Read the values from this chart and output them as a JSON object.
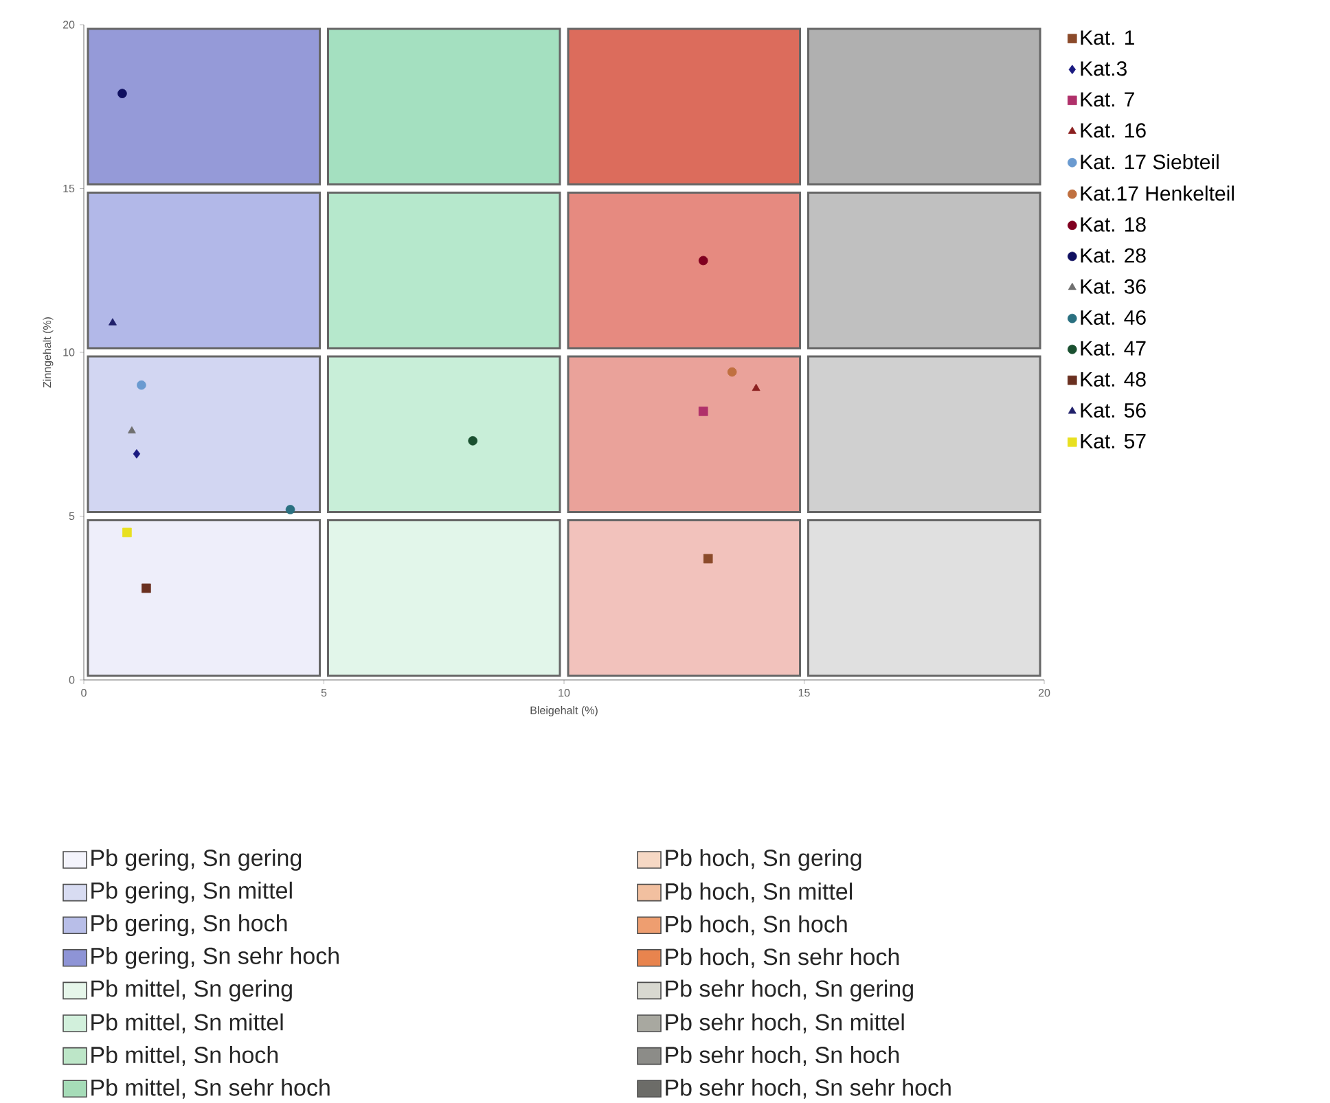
{
  "chart_data": [
    {
      "type": "scatter",
      "xlabel": "Bleigehalt (%)",
      "ylabel": "Zinngehalt (%)",
      "xlim": [
        0,
        20
      ],
      "ylim": [
        0,
        20
      ],
      "xticks": [
        0,
        5,
        10,
        15,
        20
      ],
      "yticks": [
        0,
        5,
        10,
        15,
        20
      ],
      "legend": "right",
      "series": [
        {
          "name": "Kat. 1",
          "color": "#8b4a2a",
          "marker": "square",
          "x": [
            13.0
          ],
          "values": [
            3.7
          ]
        },
        {
          "name": "Kat.3",
          "color": "#1a1a80",
          "marker": "diamond",
          "x": [
            1.1
          ],
          "values": [
            6.9
          ]
        },
        {
          "name": "Kat. 7",
          "color": "#b0306a",
          "marker": "square",
          "x": [
            12.9
          ],
          "values": [
            8.2
          ]
        },
        {
          "name": "Kat. 16",
          "color": "#8b2020",
          "marker": "triangle",
          "x": [
            14.0
          ],
          "values": [
            8.9
          ]
        },
        {
          "name": "Kat. 17 Siebteil",
          "color": "#6a9ad0",
          "marker": "circle",
          "x": [
            1.2
          ],
          "values": [
            9.0
          ]
        },
        {
          "name": "Kat.17 Henkelteil",
          "color": "#c07040",
          "marker": "circle",
          "x": [
            13.5
          ],
          "values": [
            9.4
          ]
        },
        {
          "name": "Kat. 18",
          "color": "#800020",
          "marker": "circle",
          "x": [
            12.9
          ],
          "values": [
            12.8
          ]
        },
        {
          "name": "Kat. 28",
          "color": "#101060",
          "marker": "circle",
          "x": [
            0.8
          ],
          "values": [
            17.9
          ]
        },
        {
          "name": "Kat. 36",
          "color": "#707070",
          "marker": "triangle",
          "x": [
            1.0
          ],
          "values": [
            7.6
          ]
        },
        {
          "name": "Kat. 46",
          "color": "#2a7080",
          "marker": "circle",
          "x": [
            4.3
          ],
          "values": [
            5.2
          ]
        },
        {
          "name": "Kat. 47",
          "color": "#1a5030",
          "marker": "circle",
          "x": [
            8.1
          ],
          "values": [
            7.3
          ]
        },
        {
          "name": "Kat. 48",
          "color": "#6a3020",
          "marker": "square",
          "x": [
            1.3
          ],
          "values": [
            2.8
          ]
        },
        {
          "name": "Kat. 56",
          "color": "#20206a",
          "marker": "triangle",
          "x": [
            0.6
          ],
          "values": [
            10.9
          ]
        },
        {
          "name": "Kat. 57",
          "color": "#e8e020",
          "marker": "square",
          "x": [
            0.9
          ],
          "values": [
            4.5
          ]
        }
      ]
    },
    {
      "type": "other",
      "annotations": [
        "Pb gering, Sn gering",
        "Pb gering, Sn mittel",
        "Pb gering, Sn hoch",
        "Pb gering, Sn sehr hoch",
        "Pb mittel, Sn gering",
        "Pb mittel, Sn mittel",
        "Pb mittel, Sn hoch",
        "Pb mittel, Sn sehr hoch",
        "Pb hoch, Sn gering",
        "Pb hoch, Sn mittel",
        "Pb hoch, Sn hoch",
        "Pb hoch, Sn sehr hoch",
        "Pb sehr hoch, Sn gering",
        "Pb sehr hoch, Sn mittel",
        "Pb sehr hoch, Sn hoch",
        "Pb sehr hoch, Sn sehr hoch"
      ]
    }
  ]
}
